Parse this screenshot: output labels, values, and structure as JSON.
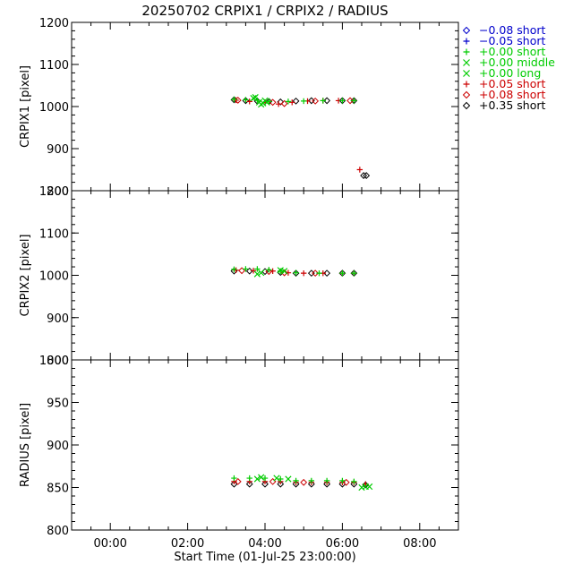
{
  "chart_data": {
    "type": "scatter",
    "title": "20250702 CRPIX1 / CRPIX2 / RADIUS",
    "xlabel": "Start Time (01-Jul-25 23:00:00)",
    "x_unit": "hours since 01-Jul-25 23:00:00",
    "xlim": [
      -1.0,
      9.0
    ],
    "x_ticks": [
      0,
      2,
      4,
      6,
      8
    ],
    "x_tick_labels": [
      "00:00",
      "02:00",
      "04:00",
      "06:00",
      "08:00"
    ],
    "grid": false,
    "legend_position": "right",
    "legend": [
      {
        "label": "−0.08 short",
        "marker": "diamond",
        "color": "#0000cc"
      },
      {
        "label": "−0.05 short",
        "marker": "plus",
        "color": "#0000cc"
      },
      {
        "label": "+0.00 short",
        "marker": "plus",
        "color": "#00cc00"
      },
      {
        "label": "+0.00 middle",
        "marker": "cross",
        "color": "#00cc00"
      },
      {
        "label": "+0.00 long",
        "marker": "cross",
        "color": "#00cc00"
      },
      {
        "label": "+0.05 short",
        "marker": "plus",
        "color": "#cc0000"
      },
      {
        "label": "+0.08 short",
        "marker": "diamond",
        "color": "#cc0000"
      },
      {
        "label": "+0.35 short",
        "marker": "diamond",
        "color": "#000000"
      }
    ],
    "panels": [
      {
        "ylabel": "CRPIX1 [pixel]",
        "ylim": [
          800,
          1200
        ],
        "y_ticks": [
          800,
          900,
          1000,
          1100,
          1200
        ],
        "series": [
          {
            "legend_index": 7,
            "points": [
              [
                3.2,
                1016
              ],
              [
                3.5,
                1014
              ],
              [
                3.8,
                1013
              ],
              [
                4.1,
                1012
              ],
              [
                4.4,
                1011
              ],
              [
                4.8,
                1013
              ],
              [
                5.2,
                1014
              ],
              [
                5.6,
                1014
              ],
              [
                6.0,
                1014
              ],
              [
                6.3,
                1014
              ],
              [
                6.55,
                836
              ],
              [
                6.62,
                836
              ]
            ]
          },
          {
            "legend_index": 5,
            "points": [
              [
                3.25,
                1015
              ],
              [
                3.6,
                1012
              ],
              [
                4.0,
                1010
              ],
              [
                4.35,
                1006
              ],
              [
                4.7,
                1010
              ],
              [
                5.1,
                1013
              ],
              [
                5.5,
                1014
              ],
              [
                5.9,
                1014
              ],
              [
                6.3,
                1014
              ],
              [
                6.45,
                850
              ]
            ]
          },
          {
            "legend_index": 6,
            "points": [
              [
                3.3,
                1015
              ],
              [
                4.2,
                1010
              ],
              [
                4.5,
                1007
              ],
              [
                5.3,
                1013
              ],
              [
                6.2,
                1014
              ]
            ]
          },
          {
            "legend_index": 2,
            "points": [
              [
                3.2,
                1017
              ],
              [
                3.5,
                1016
              ],
              [
                3.8,
                1015
              ],
              [
                4.1,
                1012
              ],
              [
                4.6,
                1012
              ],
              [
                5.0,
                1013
              ],
              [
                5.5,
                1014
              ],
              [
                6.0,
                1014
              ],
              [
                6.3,
                1014
              ]
            ]
          },
          {
            "legend_index": 3,
            "points": [
              [
                3.75,
                1022
              ],
              [
                3.85,
                1010
              ],
              [
                3.95,
                1008
              ],
              [
                4.0,
                1014
              ]
            ]
          },
          {
            "legend_index": 4,
            "points": [
              [
                3.7,
                1020
              ],
              [
                3.9,
                1005
              ],
              [
                4.05,
                1010
              ]
            ]
          }
        ]
      },
      {
        "ylabel": "CRPIX2 [pixel]",
        "ylim": [
          800,
          1200
        ],
        "y_ticks": [
          800,
          900,
          1000,
          1100,
          1200
        ],
        "series": [
          {
            "legend_index": 7,
            "points": [
              [
                3.2,
                1010
              ],
              [
                3.6,
                1010
              ],
              [
                4.0,
                1009
              ],
              [
                4.4,
                1007
              ],
              [
                4.8,
                1005
              ],
              [
                5.2,
                1005
              ],
              [
                5.6,
                1005
              ],
              [
                6.0,
                1005
              ],
              [
                6.3,
                1005
              ]
            ]
          },
          {
            "legend_index": 5,
            "points": [
              [
                3.25,
                1012
              ],
              [
                3.7,
                1011
              ],
              [
                4.2,
                1010
              ],
              [
                4.6,
                1006
              ],
              [
                5.0,
                1005
              ],
              [
                5.5,
                1005
              ],
              [
                6.0,
                1005
              ],
              [
                6.3,
                1005
              ]
            ]
          },
          {
            "legend_index": 6,
            "points": [
              [
                3.4,
                1011
              ],
              [
                4.1,
                1009
              ],
              [
                4.5,
                1006
              ],
              [
                5.3,
                1005
              ]
            ]
          },
          {
            "legend_index": 2,
            "points": [
              [
                3.2,
                1014
              ],
              [
                3.5,
                1015
              ],
              [
                3.8,
                1015
              ],
              [
                4.1,
                1013
              ],
              [
                4.4,
                1010
              ],
              [
                4.8,
                1006
              ],
              [
                5.4,
                1005
              ],
              [
                6.0,
                1005
              ],
              [
                6.3,
                1005
              ]
            ]
          },
          {
            "legend_index": 3,
            "points": [
              [
                3.8,
                1003
              ],
              [
                4.5,
                1010
              ]
            ]
          },
          {
            "legend_index": 4,
            "points": [
              [
                3.9,
                1006
              ],
              [
                4.4,
                1012
              ]
            ]
          }
        ]
      },
      {
        "ylabel": "RADIUS [pixel]",
        "ylim": [
          800,
          1000
        ],
        "y_ticks": [
          800,
          850,
          900,
          950,
          1000
        ],
        "series": [
          {
            "legend_index": 7,
            "points": [
              [
                3.2,
                854
              ],
              [
                3.6,
                854
              ],
              [
                4.0,
                854
              ],
              [
                4.4,
                854
              ],
              [
                4.8,
                854
              ],
              [
                5.2,
                854
              ],
              [
                5.6,
                854
              ],
              [
                6.0,
                854
              ],
              [
                6.3,
                854
              ],
              [
                6.6,
                853
              ]
            ]
          },
          {
            "legend_index": 5,
            "points": [
              [
                3.2,
                857
              ],
              [
                3.6,
                857
              ],
              [
                4.0,
                857
              ],
              [
                4.4,
                857
              ],
              [
                4.8,
                856
              ],
              [
                5.2,
                856
              ],
              [
                5.6,
                856
              ],
              [
                6.0,
                856
              ],
              [
                6.3,
                856
              ],
              [
                6.6,
                854
              ]
            ]
          },
          {
            "legend_index": 6,
            "points": [
              [
                3.3,
                857
              ],
              [
                4.2,
                857
              ],
              [
                5.0,
                856
              ],
              [
                6.1,
                856
              ]
            ]
          },
          {
            "legend_index": 2,
            "points": [
              [
                3.2,
                861
              ],
              [
                3.6,
                861
              ],
              [
                4.0,
                861
              ],
              [
                4.4,
                860
              ],
              [
                4.8,
                858
              ],
              [
                5.2,
                858
              ],
              [
                5.6,
                858
              ],
              [
                6.0,
                858
              ],
              [
                6.3,
                857
              ]
            ]
          },
          {
            "legend_index": 3,
            "points": [
              [
                3.8,
                860
              ],
              [
                4.3,
                861
              ],
              [
                6.5,
                850
              ],
              [
                6.7,
                851
              ]
            ]
          },
          {
            "legend_index": 4,
            "points": [
              [
                3.9,
                862
              ],
              [
                4.6,
                860
              ],
              [
                6.6,
                851
              ]
            ]
          }
        ]
      }
    ]
  }
}
